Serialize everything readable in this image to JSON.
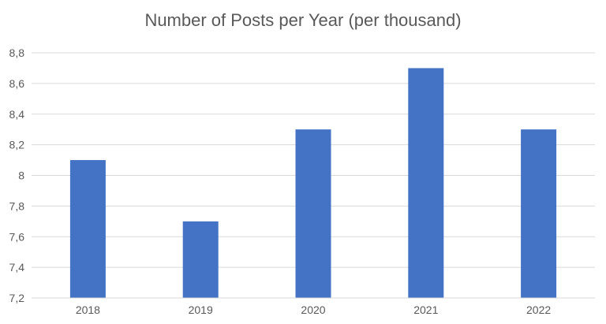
{
  "chart_data": {
    "type": "bar",
    "title": "Number of Posts per Year (per thousand)",
    "categories": [
      "2018",
      "2019",
      "2020",
      "2021",
      "2022"
    ],
    "values": [
      8.1,
      7.7,
      8.3,
      8.7,
      8.3
    ],
    "ylim": [
      7.2,
      8.8
    ],
    "yticks": [
      "7,2",
      "7,4",
      "7,6",
      "7,8",
      "8",
      "8,2",
      "8,4",
      "8,6",
      "8,8"
    ],
    "grid": true,
    "legend": "none",
    "bar_color": "#4472C4",
    "grid_color": "#D9D9D9",
    "text_color": "#595959"
  }
}
